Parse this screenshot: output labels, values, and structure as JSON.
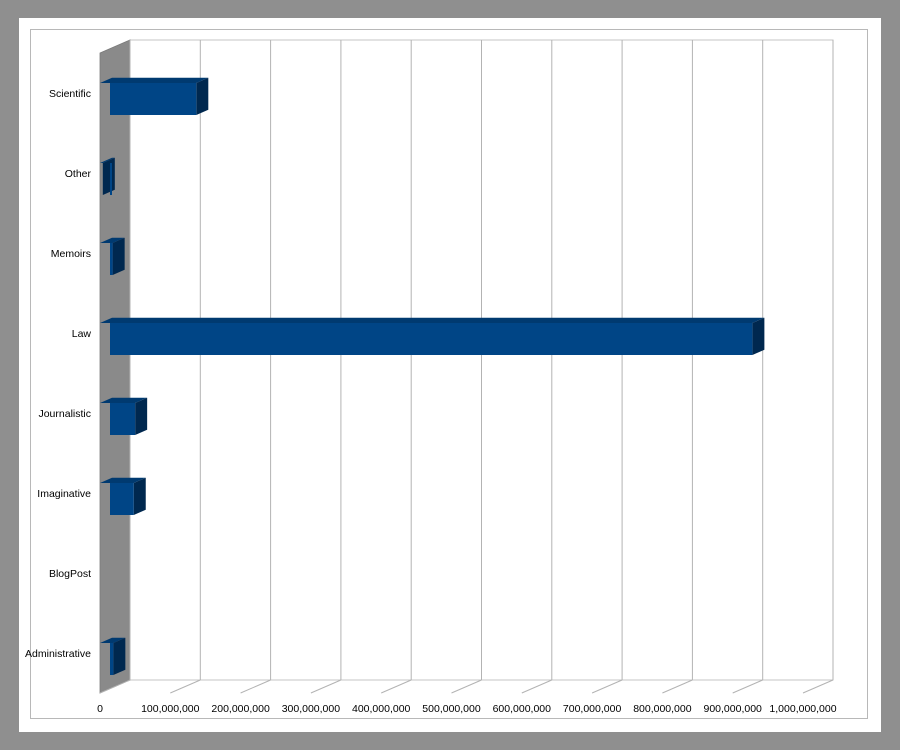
{
  "chart_data": {
    "type": "bar",
    "orientation": "horizontal",
    "style": "3d",
    "title": "",
    "xlabel": "",
    "ylabel": "",
    "categories": [
      "Scientific",
      "Other",
      "Memoirs",
      "Law",
      "Journalistic",
      "Imaginative",
      "BlogPost",
      "Administrative"
    ],
    "values": [
      137000000,
      4000000,
      18000000,
      928000000,
      50000000,
      48000000,
      0,
      19000000
    ],
    "xlim": [
      0,
      1000000000
    ],
    "x_ticks": [
      0,
      100000000,
      200000000,
      300000000,
      400000000,
      500000000,
      600000000,
      700000000,
      800000000,
      900000000,
      1000000000
    ],
    "x_tick_labels": [
      "0",
      "100,000,000",
      "200,000,000",
      "300,000,000",
      "400,000,000",
      "500,000,000",
      "600,000,000",
      "700,000,000",
      "800,000,000",
      "900,000,000",
      "1,000,000,000"
    ],
    "grid": true,
    "legend": "none",
    "colors": {
      "bar_front": "#004586",
      "bar_top": "#003a70",
      "bar_side": "#00284f",
      "wall": "#8a8a8a",
      "gridline": "#b3b3b3"
    }
  }
}
